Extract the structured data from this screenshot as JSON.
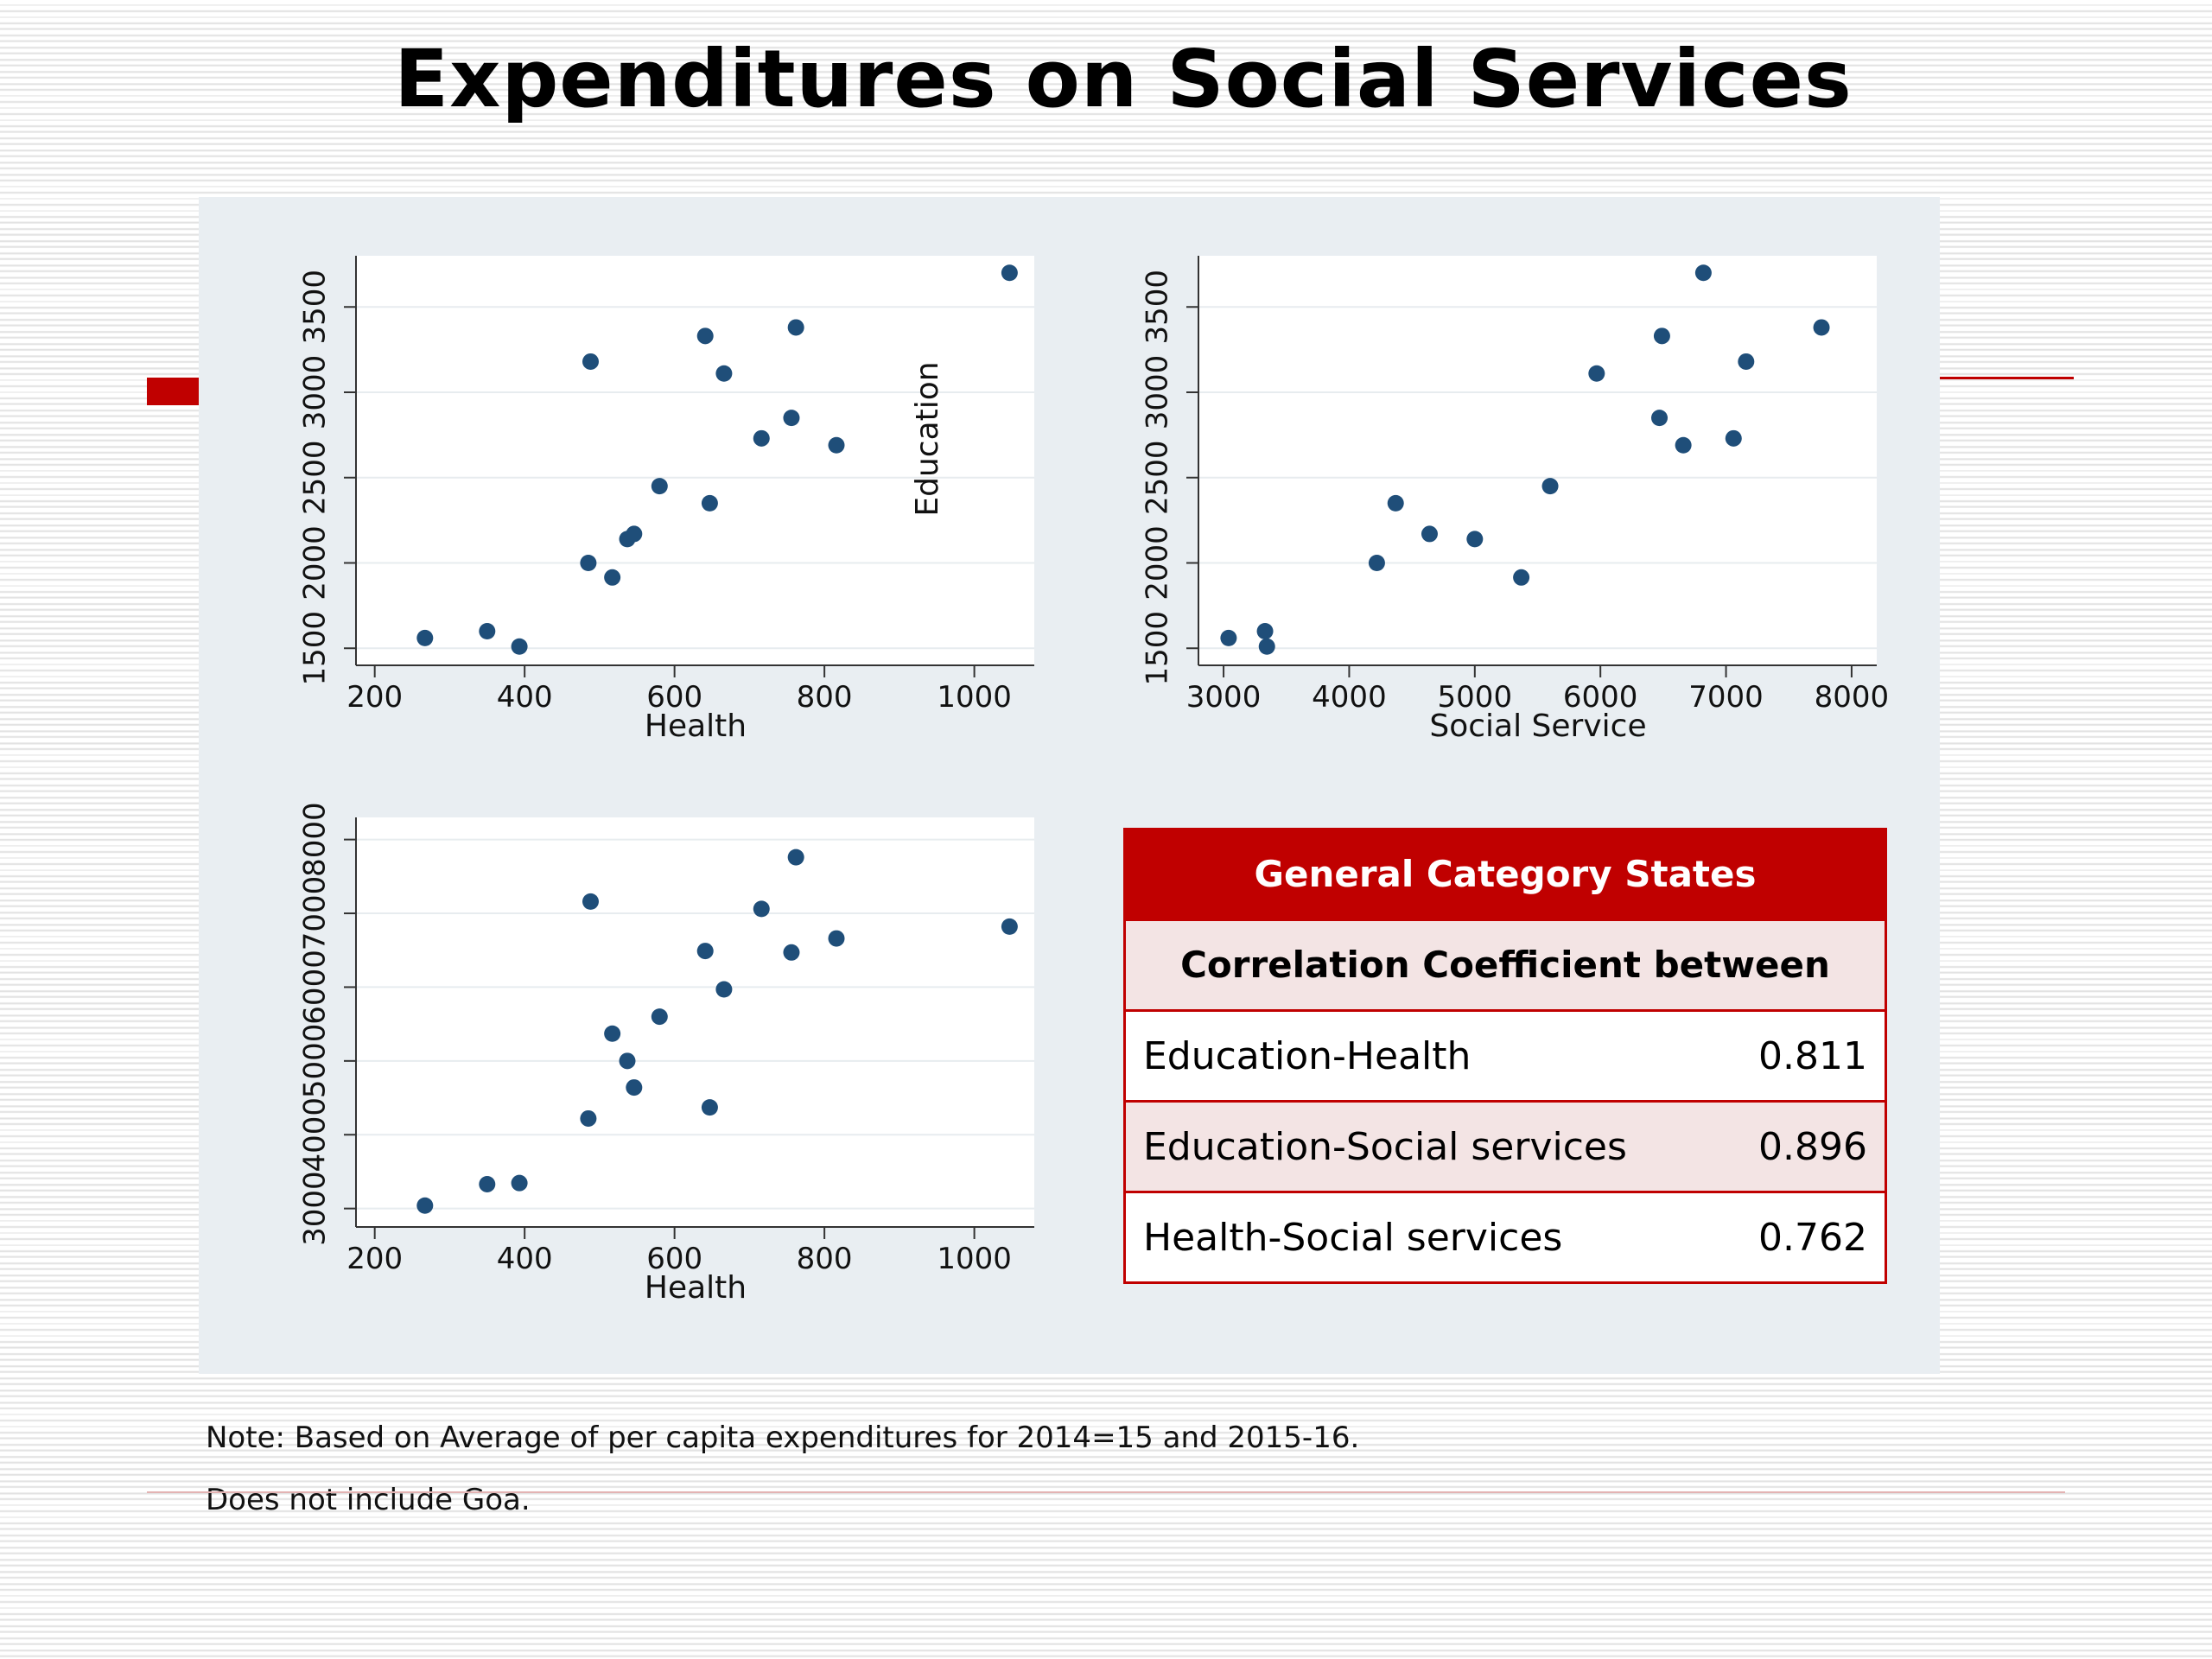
{
  "title": "Expenditures on Social Services",
  "notes": {
    "line1": "Note: Based on Average of per capita expenditures for 2014=15 and 2015-16.",
    "line2": "Does not include Goa."
  },
  "colors": {
    "accent": "#c00000",
    "point": "#1f4e79",
    "panel": "#e9eef2",
    "row_shade": "#f3e4e4"
  },
  "table": {
    "header": "General Category States",
    "subheader": "Correlation Coefficient between",
    "rows": [
      {
        "label": "Education-Health",
        "value": "0.811"
      },
      {
        "label": "Education-Social services",
        "value": "0.896"
      },
      {
        "label": "Health-Social services",
        "value": "0.762"
      }
    ]
  },
  "chart_data": [
    {
      "type": "scatter",
      "xlabel": "Health",
      "ylabel": "",
      "inner_label": "Education",
      "xlim": [
        175,
        1080
      ],
      "ylim": [
        1400,
        3800
      ],
      "xticks": [
        200,
        400,
        600,
        800,
        1000
      ],
      "yticks": [
        1500,
        2000,
        2500,
        3000,
        3500
      ],
      "grid": true,
      "points": [
        {
          "x": 267,
          "y": 1560
        },
        {
          "x": 350,
          "y": 1600
        },
        {
          "x": 393,
          "y": 1510
        },
        {
          "x": 485,
          "y": 2000
        },
        {
          "x": 488,
          "y": 3180
        },
        {
          "x": 517,
          "y": 1915
        },
        {
          "x": 537,
          "y": 2140
        },
        {
          "x": 546,
          "y": 2170
        },
        {
          "x": 580,
          "y": 2450
        },
        {
          "x": 641,
          "y": 3330
        },
        {
          "x": 647,
          "y": 2350
        },
        {
          "x": 666,
          "y": 3110
        },
        {
          "x": 716,
          "y": 2730
        },
        {
          "x": 756,
          "y": 2850
        },
        {
          "x": 762,
          "y": 3380
        },
        {
          "x": 816,
          "y": 2690
        },
        {
          "x": 1047,
          "y": 3700
        }
      ]
    },
    {
      "type": "scatter",
      "xlabel": "Social Service",
      "ylabel": "",
      "xlim": [
        2800,
        8200
      ],
      "ylim": [
        1400,
        3800
      ],
      "xticks": [
        3000,
        4000,
        5000,
        6000,
        7000,
        8000
      ],
      "yticks": [
        1500,
        2000,
        2500,
        3000,
        3500
      ],
      "grid": true,
      "points": [
        {
          "x": 3040,
          "y": 1560
        },
        {
          "x": 3330,
          "y": 1600
        },
        {
          "x": 3345,
          "y": 1510
        },
        {
          "x": 4220,
          "y": 2000
        },
        {
          "x": 4370,
          "y": 2350
        },
        {
          "x": 4640,
          "y": 2170
        },
        {
          "x": 5000,
          "y": 2140
        },
        {
          "x": 5370,
          "y": 1915
        },
        {
          "x": 5600,
          "y": 2450
        },
        {
          "x": 5970,
          "y": 3110
        },
        {
          "x": 6470,
          "y": 2850
        },
        {
          "x": 6490,
          "y": 3330
        },
        {
          "x": 6660,
          "y": 2690
        },
        {
          "x": 6820,
          "y": 3700
        },
        {
          "x": 7060,
          "y": 2730
        },
        {
          "x": 7160,
          "y": 3180
        },
        {
          "x": 7760,
          "y": 3380
        }
      ]
    },
    {
      "type": "scatter",
      "xlabel": "Health",
      "ylabel": "",
      "xlim": [
        175,
        1080
      ],
      "ylim": [
        2750,
        8300
      ],
      "xticks": [
        200,
        400,
        600,
        800,
        1000
      ],
      "yticks": [
        3000,
        4000,
        5000,
        6000,
        7000,
        8000
      ],
      "grid": true,
      "points": [
        {
          "x": 267,
          "y": 3040
        },
        {
          "x": 350,
          "y": 3330
        },
        {
          "x": 393,
          "y": 3345
        },
        {
          "x": 485,
          "y": 4220
        },
        {
          "x": 488,
          "y": 7160
        },
        {
          "x": 517,
          "y": 5370
        },
        {
          "x": 537,
          "y": 5000
        },
        {
          "x": 546,
          "y": 4640
        },
        {
          "x": 580,
          "y": 5600
        },
        {
          "x": 641,
          "y": 6490
        },
        {
          "x": 647,
          "y": 4370
        },
        {
          "x": 666,
          "y": 5970
        },
        {
          "x": 716,
          "y": 7060
        },
        {
          "x": 756,
          "y": 6470
        },
        {
          "x": 762,
          "y": 7760
        },
        {
          "x": 816,
          "y": 6660
        },
        {
          "x": 1047,
          "y": 6820
        }
      ]
    }
  ]
}
